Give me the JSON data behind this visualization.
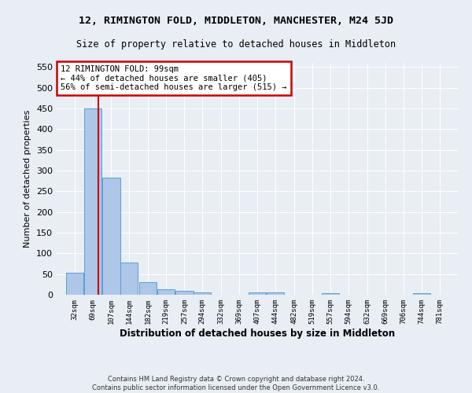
{
  "title": "12, RIMINGTON FOLD, MIDDLETON, MANCHESTER, M24 5JD",
  "subtitle": "Size of property relative to detached houses in Middleton",
  "xlabel": "Distribution of detached houses by size in Middleton",
  "ylabel": "Number of detached properties",
  "bar_color": "#aec6e8",
  "bar_edge_color": "#5a9fd4",
  "background_color": "#e8eef4",
  "grid_color": "#ffffff",
  "annotation_box_color": "#ffffff",
  "annotation_box_edge": "#cc0000",
  "annotation_line_color": "#cc0000",
  "footer1": "Contains HM Land Registry data © Crown copyright and database right 2024.",
  "footer2": "Contains public sector information licensed under the Open Government Licence v3.0.",
  "property_label": "12 RIMINGTON FOLD: 99sqm",
  "annotation_line1": "← 44% of detached houses are smaller (405)",
  "annotation_line2": "56% of semi-detached houses are larger (515) →",
  "bin_labels": [
    "32sqm",
    "69sqm",
    "107sqm",
    "144sqm",
    "182sqm",
    "219sqm",
    "257sqm",
    "294sqm",
    "332sqm",
    "369sqm",
    "407sqm",
    "444sqm",
    "482sqm",
    "519sqm",
    "557sqm",
    "594sqm",
    "632sqm",
    "669sqm",
    "706sqm",
    "744sqm",
    "781sqm"
  ],
  "bin_edges": [
    32,
    69,
    107,
    144,
    182,
    219,
    257,
    294,
    332,
    369,
    407,
    444,
    482,
    519,
    557,
    594,
    632,
    669,
    706,
    744,
    781
  ],
  "bar_heights": [
    53,
    450,
    283,
    78,
    30,
    14,
    10,
    6,
    0,
    0,
    5,
    5,
    0,
    0,
    4,
    0,
    0,
    0,
    0,
    4,
    0
  ],
  "ylim": [
    0,
    560
  ],
  "yticks": [
    0,
    50,
    100,
    150,
    200,
    250,
    300,
    350,
    400,
    450,
    500,
    550
  ],
  "red_line_x": 99
}
